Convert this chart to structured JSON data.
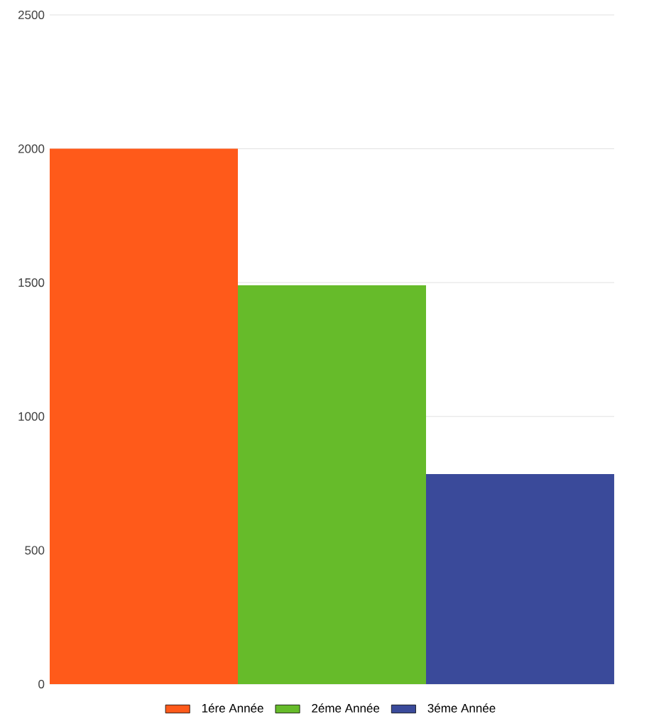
{
  "chart_data": {
    "type": "bar",
    "categories": [
      null
    ],
    "series": [
      {
        "name": "1ére Année",
        "color": "#ff5a1a",
        "values": [
          2000
        ]
      },
      {
        "name": "2éme Année",
        "color": "#66bb2a",
        "values": [
          1490
        ]
      },
      {
        "name": "3éme Année",
        "color": "#3a4a9a",
        "values": [
          785
        ]
      }
    ],
    "ylim": [
      0,
      2500
    ],
    "yticks": [
      0,
      500,
      1000,
      1500,
      2000,
      2500
    ],
    "grid": "y",
    "legend": "bottom",
    "tick_labels": "y"
  }
}
